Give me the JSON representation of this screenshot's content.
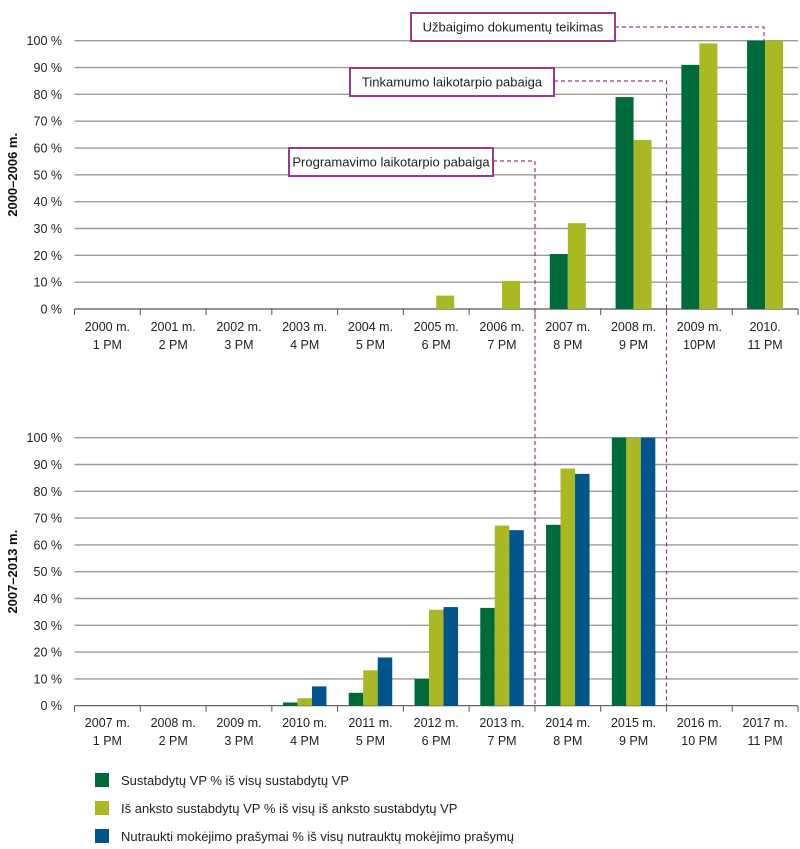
{
  "colors": {
    "series1": "#006B3A",
    "series2": "#A9B823",
    "series3": "#00558C",
    "annotation": "#9B3A8A",
    "grid": "#9a9a9a"
  },
  "legend": {
    "placement": "bottom-left",
    "items": [
      "Sustabdytų VP % iš visų sustabdytų VP",
      "Iš anksto sustabdytų VP % iš visų iš anksto sustabdytų VP",
      "Nutraukti mokėjimo prašymai % iš visų nutrauktų mokėjimo prašymų"
    ]
  },
  "annotations": [
    {
      "label": "Užbaigimo dokumentų teikimas",
      "marks_between": [
        "2009 m. 10PM",
        "2010. 11 PM"
      ]
    },
    {
      "label": "Tinkamumo laikotarpio pabaiga",
      "marks_between": [
        "2008 m. 9 PM",
        "2009 m. 10PM"
      ]
    },
    {
      "label": "Programavimo laikotarpio pabaiga",
      "marks_between": [
        "2006 m. 7 PM",
        "2007 m. 8 PM"
      ]
    }
  ],
  "chart_data": [
    {
      "type": "bar",
      "ylabel": "2000–2006 m.",
      "ylim": [
        0,
        100
      ],
      "yticks": [
        "0 %",
        "10 %",
        "20 %",
        "30 %",
        "40 %",
        "50 %",
        "60 %",
        "70 %",
        "80 %",
        "90 %",
        "100 %"
      ],
      "grid": true,
      "categories": [
        [
          "2000 m.",
          "1 PM"
        ],
        [
          "2001 m.",
          "2 PM"
        ],
        [
          "2002 m.",
          "3 PM"
        ],
        [
          "2003 m.",
          "4 PM"
        ],
        [
          "2004 m.",
          "5 PM"
        ],
        [
          "2005 m.",
          "6 PM"
        ],
        [
          "2006 m.",
          "7 PM"
        ],
        [
          "2007 m.",
          "8 PM"
        ],
        [
          "2008 m.",
          "9 PM"
        ],
        [
          "2009 m.",
          "10PM"
        ],
        [
          "2010.",
          "11 PM"
        ]
      ],
      "series": [
        {
          "name": "Sustabdytų VP % iš visų sustabdytų VP",
          "values": [
            0,
            0,
            0,
            0,
            0,
            0,
            0,
            20.5,
            79,
            91,
            100
          ]
        },
        {
          "name": "Iš anksto sustabdytų VP % iš visų iš anksto sustabdytų VP",
          "values": [
            0,
            0,
            0,
            0,
            0,
            5,
            10.5,
            32,
            63,
            99,
            100
          ]
        }
      ]
    },
    {
      "type": "bar",
      "ylabel": "2007–2013 m.",
      "ylim": [
        0,
        100
      ],
      "yticks": [
        "0 %",
        "10 %",
        "20 %",
        "30 %",
        "40 %",
        "50 %",
        "60 %",
        "70 %",
        "80 %",
        "90 %",
        "100 %"
      ],
      "grid": true,
      "categories": [
        [
          "2007 m.",
          "1 PM"
        ],
        [
          "2008 m.",
          "2 PM"
        ],
        [
          "2009 m.",
          "3 PM"
        ],
        [
          "2010 m.",
          "4 PM"
        ],
        [
          "2011 m.",
          "5 PM"
        ],
        [
          "2012 m.",
          "6 PM"
        ],
        [
          "2013 m.",
          "7 PM"
        ],
        [
          "2014 m.",
          "8 PM"
        ],
        [
          "2015 m.",
          "9 PM"
        ],
        [
          "2016 m.",
          "10 PM"
        ],
        [
          "2017 m.",
          "11 PM"
        ]
      ],
      "series": [
        {
          "name": "Sustabdytų VP % iš visų sustabdytų VP",
          "values": [
            0,
            0,
            0,
            1.2,
            4.8,
            10,
            36.5,
            67.5,
            100,
            0,
            0
          ]
        },
        {
          "name": "Iš anksto sustabdytų VP % iš visų iš anksto sustabdytų VP",
          "values": [
            0,
            0,
            0,
            2.8,
            13.2,
            35.8,
            67.2,
            88.5,
            100,
            0,
            0
          ]
        },
        {
          "name": "Nutraukti mokėjimo prašymai % iš visų nutrauktų mokėjimo prašymų",
          "values": [
            0,
            0,
            0,
            7.2,
            18,
            36.8,
            65.5,
            86.5,
            100,
            0,
            0
          ]
        }
      ]
    }
  ]
}
